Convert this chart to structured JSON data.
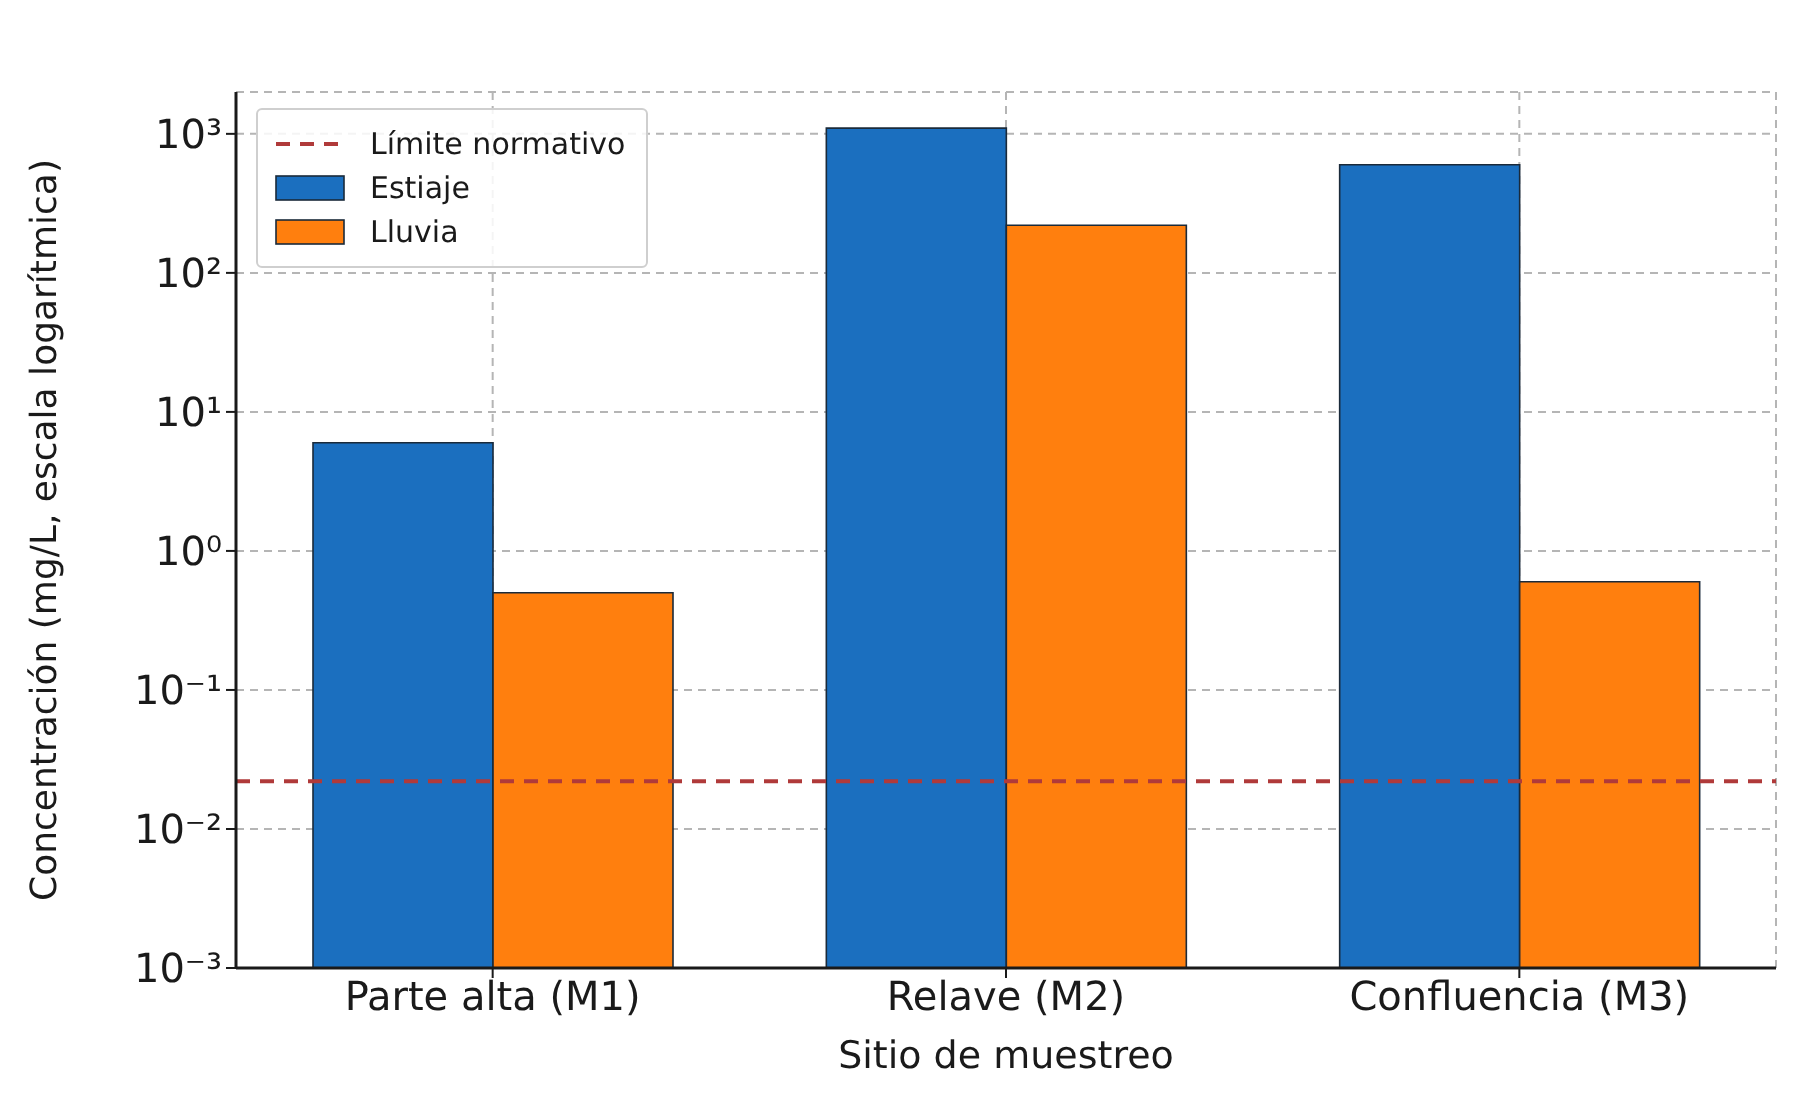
{
  "chart_data": {
    "type": "bar",
    "xlabel": "Sitio de muestreo",
    "ylabel": "Concentración (mg/L, escala logarítmica)",
    "categories": [
      "Parte alta (M1)",
      "Relave (M2)",
      "Confluencia (M3)"
    ],
    "series": [
      {
        "name": "Estiaje",
        "color": "#1b6fbf",
        "values": [
          6,
          1100,
          600
        ]
      },
      {
        "name": "Lluvia",
        "color": "#ff7f0e",
        "values": [
          0.5,
          220,
          0.6
        ]
      }
    ],
    "log": "y",
    "ylim": [
      0.001,
      2000
    ],
    "yticks": [
      {
        "value": 0.001,
        "label": "10⁻³"
      },
      {
        "value": 0.01,
        "label": "10⁻²"
      },
      {
        "value": 0.1,
        "label": "10⁻¹"
      },
      {
        "value": 1,
        "label": "10⁰"
      },
      {
        "value": 10,
        "label": "10¹"
      },
      {
        "value": 100,
        "label": "10²"
      },
      {
        "value": 1000,
        "label": "10³"
      }
    ],
    "grid": true,
    "legend": "top left",
    "ref_lines": [
      {
        "axis": "y",
        "value": 0.022,
        "label": "Límite normativo",
        "color": "#b03a3a",
        "line_style": "dashed"
      }
    ]
  }
}
